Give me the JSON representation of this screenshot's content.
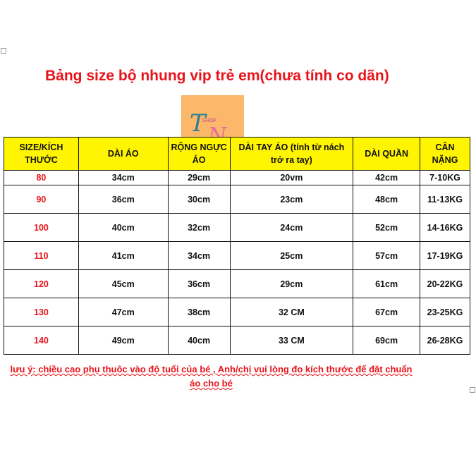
{
  "title": "Bảng size bộ nhung vip trẻ em(chưa tính co dãn)",
  "logo": {
    "text": "TN",
    "subtext": "SHOP",
    "brand_color": "#fbb86a"
  },
  "table": {
    "headers": [
      "SIZE/KÍCH THƯỚC",
      "DÀI ÁO",
      "RỘNG NGỰC ÁO",
      "DÀI TAY ÁO (tính từ nách trở ra tay)",
      "DÀI QUẦN",
      "CÂN NẶNG"
    ],
    "rows": [
      [
        "80",
        "34cm",
        "29cm",
        "20vm",
        "42cm",
        "7-10KG"
      ],
      [
        "90",
        "36cm",
        "30cm",
        "23cm",
        "48cm",
        "11-13KG"
      ],
      [
        "100",
        "40cm",
        "32cm",
        "24cm",
        "52cm",
        "14-16KG"
      ],
      [
        "110",
        "41cm",
        "34cm",
        "25cm",
        "57cm",
        "17-19KG"
      ],
      [
        "120",
        "45cm",
        "36cm",
        "29cm",
        "61cm",
        "20-22KG"
      ],
      [
        "130",
        "47cm",
        "38cm",
        "32 CM",
        "67cm",
        "23-25KG"
      ],
      [
        "140",
        "49cm",
        "40cm",
        "33 CM",
        "69cm",
        "26-28KG"
      ]
    ]
  },
  "note": "lưu ý: chiều cao phụ thuôc vào độ tuổi của bé , Anh/chị vui lòng đo kích thước để đặt chuẩn áo cho bé",
  "colors": {
    "accent": "#e8141b",
    "header_bg": "#fff500"
  }
}
